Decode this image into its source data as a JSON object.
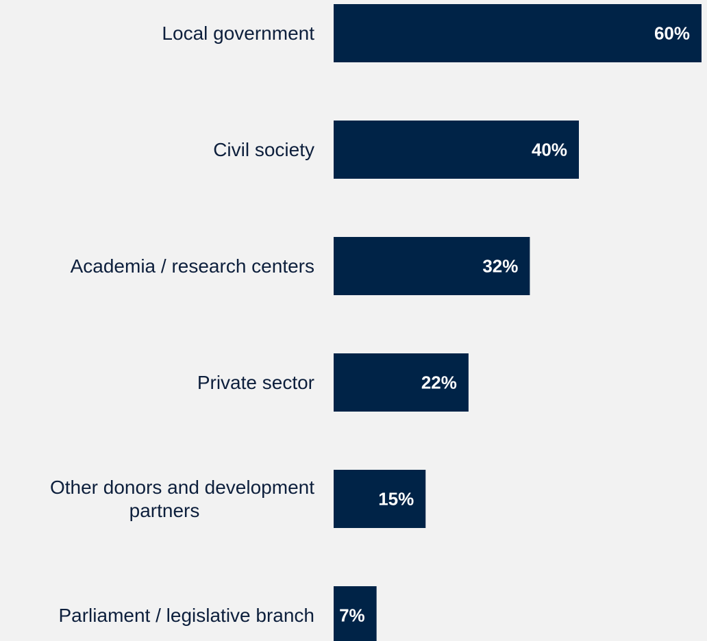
{
  "chart_data": {
    "type": "bar",
    "orientation": "horizontal",
    "categories": [
      "Local government",
      "Civil society",
      "Academia / research centers",
      "Private sector",
      "Other donors and development partners",
      "Parliament / legislative branch"
    ],
    "category_label_lines": [
      [
        "Local government"
      ],
      [
        "Civil society"
      ],
      [
        "Academia / research centers"
      ],
      [
        "Private sector"
      ],
      [
        "Other donors and development",
        "partners"
      ],
      [
        "Parliament / legislative branch"
      ]
    ],
    "values": [
      60,
      40,
      32,
      22,
      15,
      7
    ],
    "value_labels": [
      "60%",
      "40%",
      "32%",
      "22%",
      "15%",
      "7%"
    ],
    "unit": "%",
    "xlim": [
      0,
      60
    ],
    "grid": false,
    "legend": "none",
    "colors": {
      "bar": "#002347",
      "background": "#f2f2f2",
      "label_text": "#0d1f3c",
      "value_text": "#ffffff"
    }
  }
}
